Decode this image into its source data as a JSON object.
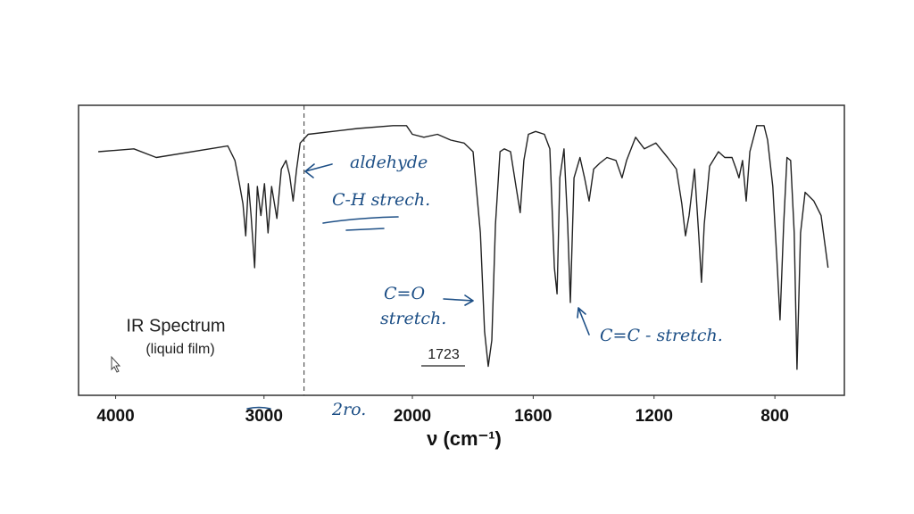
{
  "chart_data": {
    "type": "line",
    "x_label": "ν (cm⁻¹)",
    "inset_title": "IR Spectrum",
    "inset_subtitle": "(liquid film)",
    "peak_label": "1723",
    "xlim": [
      4250,
      570
    ],
    "x_scale_break": 2000,
    "ylim": [
      0,
      100
    ],
    "xticks": [
      4000,
      3000,
      2000,
      1600,
      1200,
      800
    ],
    "reference_line": 2730,
    "color": "#222222",
    "x": [
      4117,
      3877,
      3726,
      3244,
      3196,
      3166,
      3142,
      3123,
      3105,
      3087,
      3063,
      3045,
      3021,
      2997,
      2973,
      2949,
      2913,
      2883,
      2852,
      2828,
      2804,
      2780,
      2756,
      2702,
      2370,
      2130,
      2040,
      2000,
      1962,
      1917,
      1873,
      1829,
      1799,
      1775,
      1761,
      1749,
      1737,
      1725,
      1710,
      1696,
      1675,
      1657,
      1643,
      1631,
      1616,
      1592,
      1563,
      1545,
      1530,
      1521,
      1512,
      1498,
      1486,
      1477,
      1465,
      1445,
      1430,
      1415,
      1400,
      1380,
      1356,
      1326,
      1306,
      1291,
      1261,
      1232,
      1194,
      1155,
      1126,
      1108,
      1096,
      1084,
      1066,
      1052,
      1043,
      1034,
      1016,
      987,
      966,
      942,
      928,
      919,
      907,
      895,
      883,
      860,
      836,
      824,
      807,
      792,
      783,
      771,
      760,
      748,
      736,
      727,
      715,
      700,
      671,
      647,
      624
    ],
    "values": [
      84,
      85,
      82,
      86,
      81,
      73,
      66,
      55,
      73,
      62,
      44,
      72,
      62,
      73,
      56,
      72,
      61,
      78,
      81,
      76,
      67,
      78,
      87,
      90,
      92,
      93,
      93,
      90,
      89,
      90,
      88,
      87,
      84,
      56,
      22,
      10,
      19,
      59,
      84,
      85,
      84,
      72,
      63,
      81,
      90,
      91,
      90,
      85,
      44,
      35,
      75,
      85,
      59,
      32,
      75,
      82,
      75,
      67,
      78,
      80,
      82,
      81,
      75,
      81,
      89,
      85,
      87,
      82,
      78,
      66,
      55,
      62,
      78,
      55,
      39,
      59,
      79,
      84,
      82,
      82,
      78,
      75,
      81,
      67,
      84,
      93,
      93,
      88,
      72,
      44,
      26,
      59,
      82,
      81,
      56,
      9,
      56,
      70,
      67,
      62,
      44
    ],
    "annotations": [
      "aldehyde",
      "C-H strech.",
      "C=O",
      "stretch.",
      "C=C - stretch.",
      "2ro."
    ]
  }
}
